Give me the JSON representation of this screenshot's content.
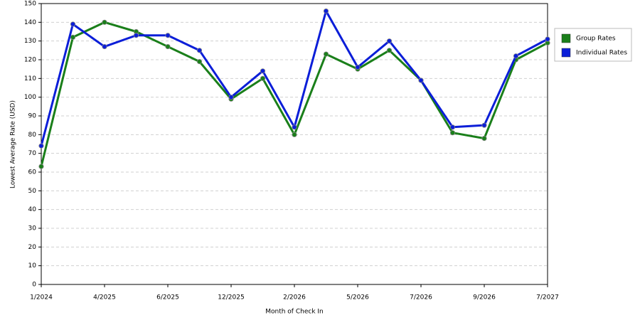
{
  "chart_data": {
    "type": "line",
    "x_label": "Month of Check In",
    "y_label": "Lowest Average Rate (USD)",
    "categories": [
      "1/2024",
      null,
      "4/2025",
      null,
      "6/2025",
      null,
      "12/2025",
      null,
      "2/2026",
      null,
      "5/2026",
      null,
      "7/2026",
      null,
      "9/2026",
      null,
      "7/2027"
    ],
    "series": [
      {
        "name": "Group Rates",
        "color": "#1a7f1a",
        "values": [
          63,
          132,
          140,
          135,
          127,
          119,
          99,
          110,
          80,
          123,
          115,
          125,
          109,
          81,
          78,
          120,
          129
        ]
      },
      {
        "name": "Individual Rates",
        "color": "#0b1ed8",
        "values": [
          74,
          139,
          127,
          133,
          133,
          125,
          100,
          114,
          84,
          146,
          116,
          130,
          109,
          84,
          85,
          122,
          131
        ]
      }
    ],
    "ylim": [
      0,
      150
    ],
    "yticks": [
      0,
      10,
      20,
      30,
      40,
      50,
      60,
      70,
      80,
      90,
      100,
      110,
      120,
      130,
      140,
      150
    ],
    "grid": true,
    "legend": "right"
  }
}
